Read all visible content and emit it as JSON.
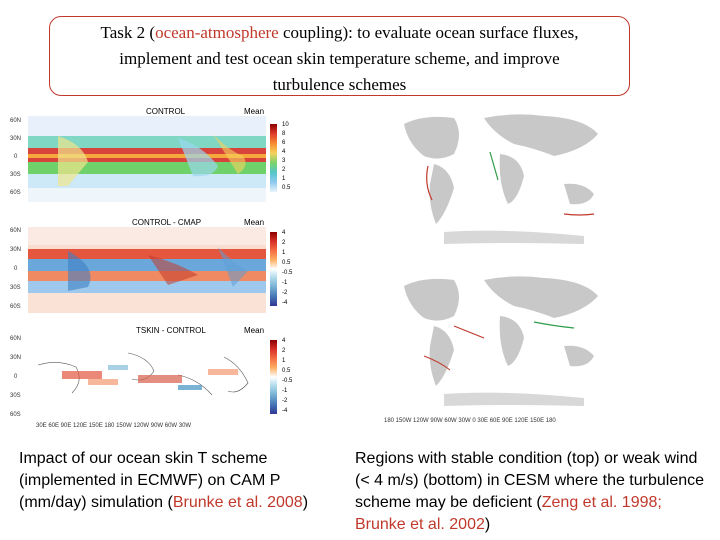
{
  "title": {
    "prefix": "Task 2 (",
    "highlight": "ocean-atmosphere",
    "suffix_line1": " coupling): to evaluate ocean surface fluxes,",
    "line2": "implement and test  ocean skin temperature scheme, and improve",
    "line3": "turbulence schemes"
  },
  "left_panels": [
    {
      "label": "CONTROL",
      "right_label": "Mean",
      "colorbar": [
        "10",
        "8",
        "6",
        "4",
        "3",
        "2",
        "1",
        "0.5"
      ]
    },
    {
      "label": "CONTROL - CMAP",
      "right_label": "Mean",
      "colorbar": [
        "4",
        "2",
        "1",
        "0.5",
        "-0.5",
        "-1",
        "-2",
        "-4"
      ]
    },
    {
      "label": "TSKIN - CONTROL",
      "right_label": "Mean",
      "colorbar": [
        "4",
        "2",
        "1",
        "0.5",
        "-0.5",
        "-1",
        "-2",
        "-4"
      ]
    }
  ],
  "lat_labels": [
    "60N",
    "30N",
    "0",
    "30S",
    "60S"
  ],
  "lon_labels": "30E  60E  90E  120E 150E  180  150W 120W  90W  60W  30W",
  "right_lon_labels": "180  150W 120W  90W  60W  30W  0  30E  60E  90E 120E 150E  180",
  "left_caption": {
    "text": "Impact of our ocean skin T scheme (implemented in ECMWF) on CAM P (mm/day) simulation (",
    "ref": "Brunke et al. 2008",
    "close": ")"
  },
  "right_caption": {
    "text": "Regions with stable condition (top) or weak wind (< 4 m/s) (bottom) in CESM where the turbulence scheme may be deficient (",
    "ref": "Zeng et al. 1998; Brunke et al. 2002",
    "close": ")"
  },
  "colors": {
    "accent": "#c0392b"
  }
}
